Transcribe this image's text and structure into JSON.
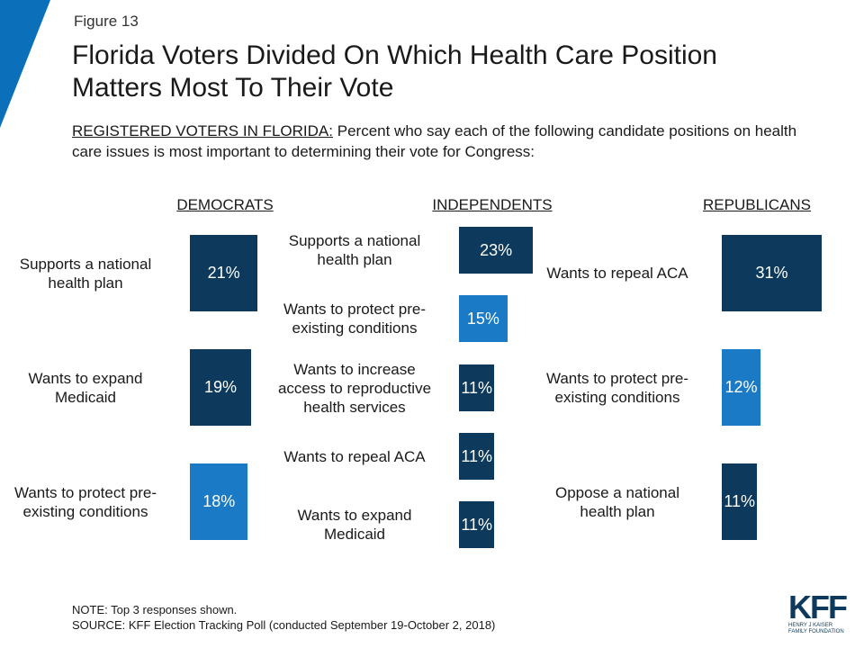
{
  "figure": "Figure 13",
  "title": "Florida Voters Divided On Which Health Care Position Matters Most To Their Vote",
  "subtitle_lead": "REGISTERED VOTERS IN FLORIDA:",
  "subtitle": "Percent who say each of the following candidate positions on health care issues is most important to determining their vote for Congress:",
  "note": "NOTE: Top 3 responses shown.",
  "source": "SOURCE: KFF Election Tracking Poll (conducted September 19-October 2, 2018)",
  "logo": "KFF",
  "logo_sub": "HENRY J KAISER FAMILY FOUNDATION",
  "chart_data": [
    {
      "type": "bar",
      "title": "DEMOCRATS",
      "categories": [
        "Supports a national\nhealth plan",
        "Wants to expand\nMedicaid",
        "Wants to protect pre-\nexisting conditions"
      ],
      "values": [
        21,
        19,
        18
      ],
      "value_labels": [
        "21%",
        "19%",
        "18%"
      ],
      "colors": [
        "#0d3a5c",
        "#0d3a5c",
        "#1a7ac6"
      ]
    },
    {
      "type": "bar",
      "title": "INDEPENDENTS",
      "categories": [
        "Supports a national\nhealth plan",
        "Wants to protect pre-\nexisting conditions",
        "Wants to increase\naccess to reproductive\nhealth services",
        "Wants to repeal ACA",
        "Wants to expand\nMedicaid"
      ],
      "values": [
        23,
        15,
        11,
        11,
        11
      ],
      "value_labels": [
        "23%",
        "15%",
        "11%",
        "11%",
        "11%"
      ],
      "colors": [
        "#0d3a5c",
        "#1a7ac6",
        "#0d3a5c",
        "#0d3a5c",
        "#0d3a5c"
      ]
    },
    {
      "type": "bar",
      "title": "REPUBLICANS",
      "categories": [
        "Wants to repeal ACA",
        "Wants to protect pre-\nexisting conditions",
        "Oppose a national\nhealth plan"
      ],
      "values": [
        31,
        12,
        11
      ],
      "value_labels": [
        "31%",
        "12%",
        "11%"
      ],
      "colors": [
        "#0d3a5c",
        "#1a7ac6",
        "#0d3a5c"
      ]
    }
  ]
}
